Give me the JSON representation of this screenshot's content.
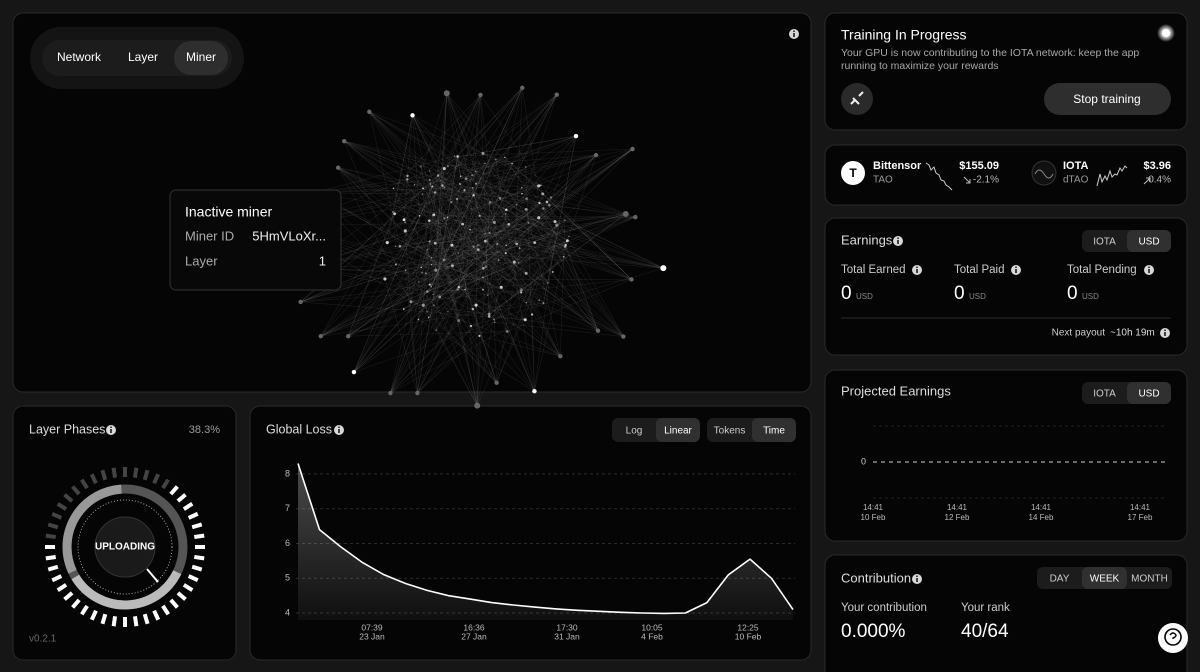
{
  "network": {
    "tabs": [
      "Network",
      "Layer",
      "Miner"
    ],
    "tooltip": {
      "title": "Inactive miner",
      "rows": [
        [
          "Miner ID",
          "5HmVLoXr..."
        ],
        [
          "Layer",
          "1"
        ]
      ]
    }
  },
  "training": {
    "title": "Training In Progress",
    "description": "Your GPU is now contributing to the IOTA network: keep the app running to maximize your rewards",
    "button": "Stop training"
  },
  "prices": [
    {
      "icon": "T",
      "name": "Bittensor",
      "symbol": "TAO",
      "price": "$155.09",
      "change": "-2.1%"
    },
    {
      "name": "IOTA",
      "symbol": "dTAO",
      "price": "$3.96",
      "change": "0.4%"
    }
  ],
  "earnings": {
    "title": "Earnings",
    "toggle": [
      "IOTA",
      "USD"
    ],
    "stats": [
      {
        "label": "Total Earned",
        "value": "0",
        "unit": "USD"
      },
      {
        "label": "Total Paid",
        "value": "0",
        "unit": "USD"
      },
      {
        "label": "Total Pending",
        "value": "0",
        "unit": "USD"
      }
    ],
    "next_payout_label": "Next payout",
    "next_payout": "~10h 19m"
  },
  "projected": {
    "title": "Projected Earnings",
    "toggle": [
      "IOTA",
      "USD"
    ],
    "yticks": [
      0
    ],
    "xticks": [
      [
        "14:41",
        "10 Feb"
      ],
      [
        "14:41",
        "12 Feb"
      ],
      [
        "14:41",
        "14 Feb"
      ],
      [
        "14:41",
        "17 Feb"
      ]
    ]
  },
  "contribution": {
    "title": "Contribution",
    "toggle": [
      "DAY",
      "WEEK",
      "MONTH"
    ],
    "stats": [
      {
        "label": "Your contribution",
        "value": "0.000%"
      },
      {
        "label": "Your rank",
        "value": "40/64"
      }
    ]
  },
  "layer_phases": {
    "title": "Layer Phases",
    "percent": "38.3%",
    "phase": "UPLOADING",
    "version": "v0.2.1"
  },
  "global_loss": {
    "title": "Global Loss",
    "scale_toggle": [
      "Log",
      "Linear"
    ],
    "axis_toggle": [
      "Tokens",
      "Time"
    ],
    "ylim": [
      3.8,
      8.4
    ],
    "yticks": [
      8,
      7,
      6,
      5,
      4
    ],
    "xticks": [
      [
        "07:39",
        "23 Jan"
      ],
      [
        "16:36",
        "27 Jan"
      ],
      [
        "17:30",
        "31 Jan"
      ],
      [
        "10:05",
        "4 Feb"
      ],
      [
        "12:25",
        "10 Feb"
      ]
    ],
    "values": [
      8.3,
      6.4,
      5.9,
      5.45,
      5.1,
      4.85,
      4.65,
      4.5,
      4.4,
      4.3,
      4.23,
      4.17,
      4.12,
      4.08,
      4.05,
      4.02,
      4.0,
      3.99,
      4.0,
      4.3,
      5.1,
      5.55,
      5.0,
      4.1
    ]
  }
}
